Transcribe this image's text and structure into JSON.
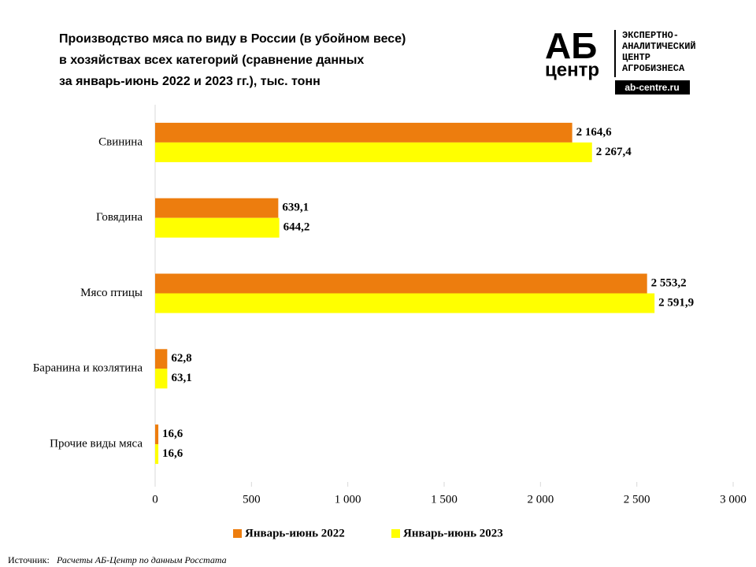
{
  "chart_data": {
    "type": "hbar",
    "title": [
      "Производство  мяса по виду в России (в убойном весе)",
      "в хозяйствах всех категорий (сравнение данных",
      "за январь-июнь  2022 и 2023 гг.), тыс. тонн"
    ],
    "categories": [
      "Свинина",
      "Говядина",
      "Мясо птицы",
      "Баранина и козлятина",
      "Прочие виды мяса"
    ],
    "series": [
      {
        "name": "Январь-июнь 2022",
        "color": "#ed7d0e",
        "values": [
          2164.6,
          639.1,
          2553.2,
          62.8,
          16.6
        ],
        "value_labels": [
          "2 164,6",
          "639,1",
          "2 553,2",
          "62,8",
          "16,6"
        ]
      },
      {
        "name": "Январь-июнь 2023",
        "color": "#ffff00",
        "values": [
          2267.4,
          644.2,
          2591.9,
          63.1,
          16.6
        ],
        "value_labels": [
          "2 267,4",
          "644,2",
          "2 591,9",
          "63,1",
          "16,6"
        ]
      }
    ],
    "xlim": [
      0,
      3000
    ],
    "xticks": [
      0,
      500,
      {
        "value": 1000,
        "label": "1 000"
      },
      {
        "value": 1500,
        "label": "1 500"
      },
      {
        "value": 2000,
        "label": "2 000"
      },
      {
        "value": 2500,
        "label": "2 500"
      },
      {
        "value": 3000,
        "label": "3 000"
      }
    ],
    "legend": "bottom",
    "source": {
      "label": "Источник:",
      "text": "Расчеты АБ-Центр по данным Росстата"
    }
  },
  "logo": {
    "mark": "АБ",
    "sub": "центр",
    "lines": [
      "ЭКСПЕРТНО-",
      "АНАЛИТИЧЕСКИЙ",
      "ЦЕНТР",
      "АГРОБИЗНЕСА"
    ],
    "url": "ab-centre.ru"
  }
}
